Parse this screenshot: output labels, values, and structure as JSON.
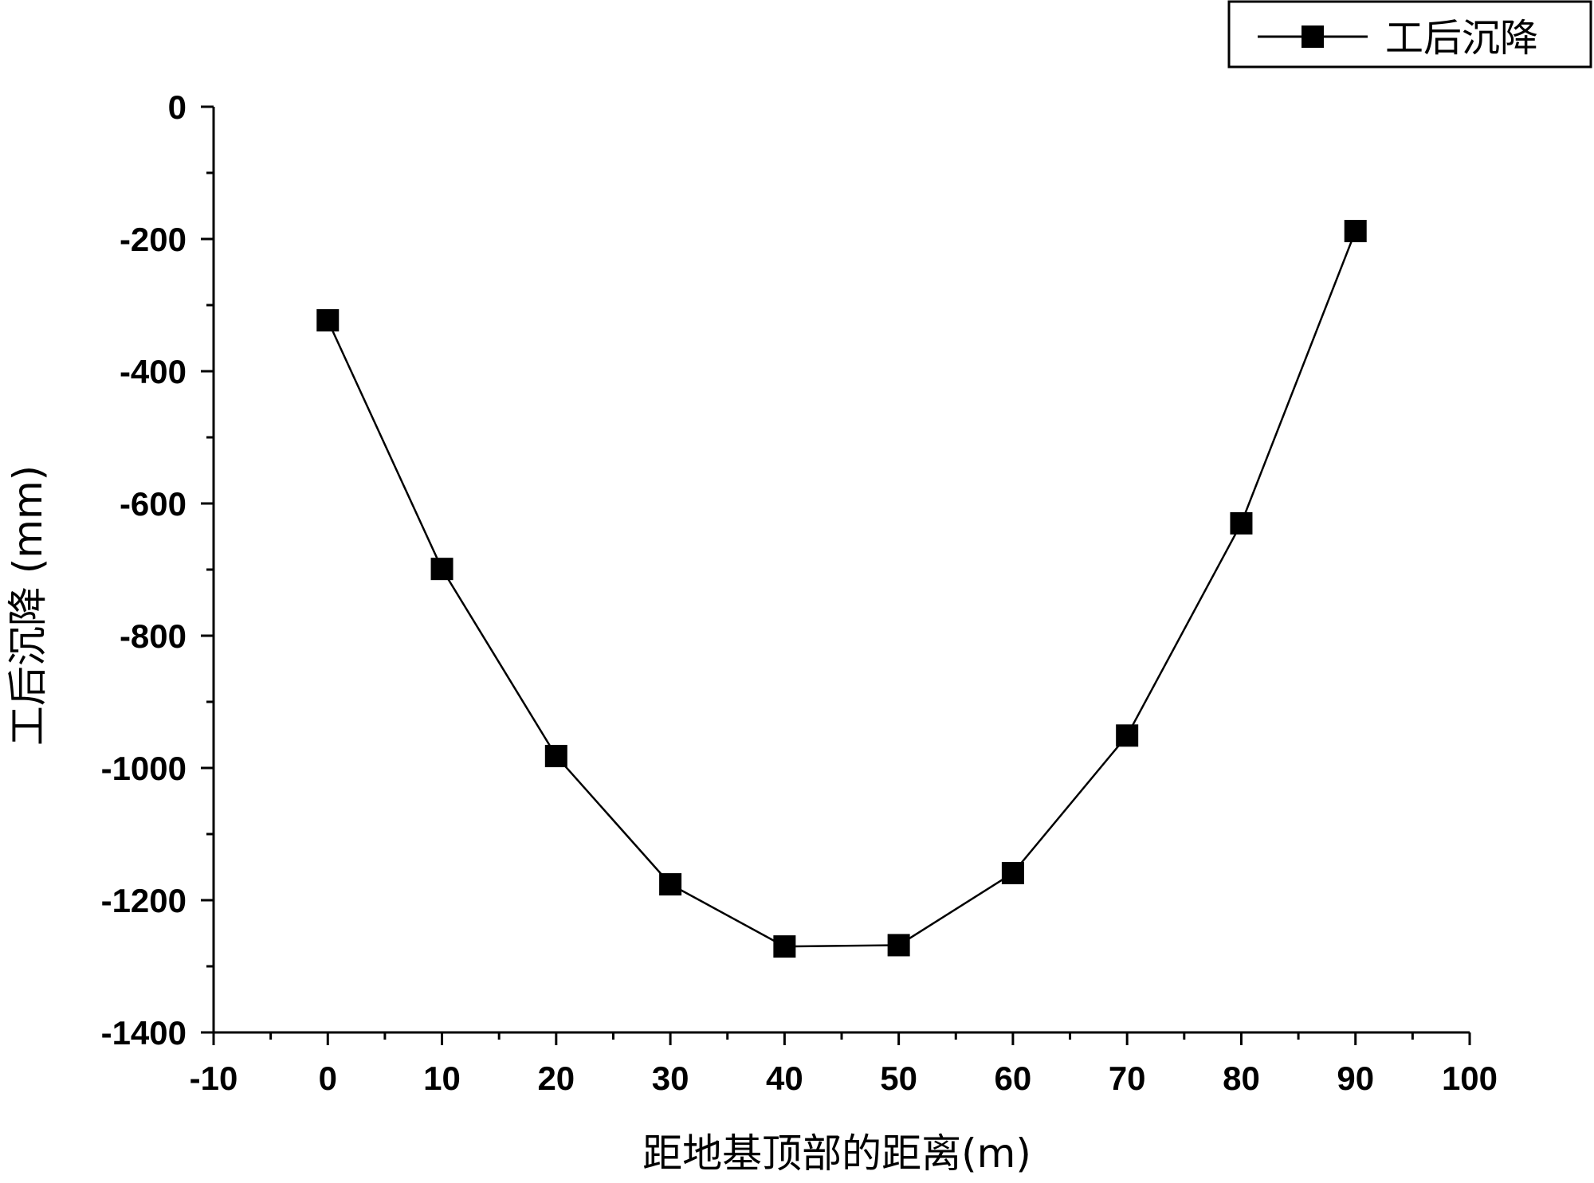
{
  "chart_data": {
    "type": "line",
    "title": "",
    "xlabel": "距地基顶部的距离(m)",
    "ylabel": "工后沉降 (mm)",
    "xlim": [
      -10,
      100
    ],
    "ylim": [
      -1400,
      0
    ],
    "x_ticks": [
      -10,
      0,
      10,
      20,
      30,
      40,
      50,
      60,
      70,
      80,
      90,
      100
    ],
    "y_ticks": [
      0,
      -200,
      -400,
      -600,
      -800,
      -1000,
      -1200,
      -1400
    ],
    "grid": false,
    "legend_position": "top-right",
    "series": [
      {
        "name": "工后沉降",
        "marker": "square",
        "color": "#000000",
        "x": [
          0,
          10,
          20,
          30,
          40,
          50,
          60,
          70,
          80,
          90
        ],
        "y": [
          -323,
          -699,
          -982,
          -1176,
          -1270,
          -1268,
          -1159,
          -951,
          -630,
          -188
        ]
      }
    ]
  }
}
